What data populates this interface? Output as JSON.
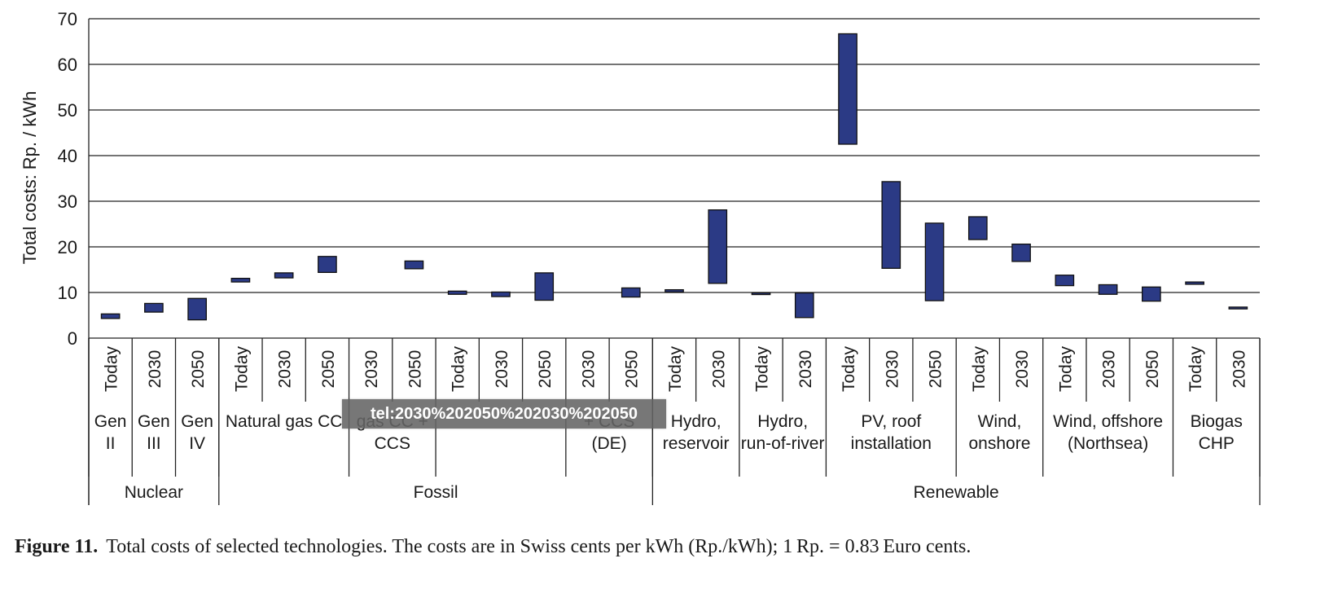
{
  "chart_data": {
    "type": "bar",
    "subtype": "floating-range",
    "ylabel": "Total costs: Rp. / kWh",
    "ylim": [
      0,
      70
    ],
    "yticks": [
      0,
      10,
      20,
      30,
      40,
      50,
      60,
      70
    ],
    "grid": true,
    "bar_color": "#2b3a85",
    "categories": [
      "Today",
      "2030",
      "2050",
      "Today",
      "2030",
      "2050",
      "2030",
      "2050",
      "Today",
      "2030",
      "2050",
      "2030",
      "2050",
      "Today",
      "2030",
      "Today",
      "2030",
      "Today",
      "2030",
      "2050",
      "Today",
      "2030",
      "Today",
      "2030",
      "2050",
      "Today",
      "2030"
    ],
    "ranges": [
      [
        4.3,
        5.3
      ],
      [
        5.7,
        7.6
      ],
      [
        4.0,
        8.7
      ],
      [
        12.3,
        13.1
      ],
      [
        13.2,
        14.3
      ],
      [
        14.4,
        17.9
      ],
      null,
      [
        15.2,
        16.9
      ],
      [
        9.6,
        10.3
      ],
      [
        9.1,
        10.1
      ],
      [
        8.3,
        14.3
      ],
      null,
      [
        9.0,
        11.0
      ],
      [
        10.1,
        10.6
      ],
      [
        12.0,
        28.1
      ],
      [
        9.6,
        9.9
      ],
      [
        4.5,
        9.9
      ],
      [
        42.5,
        66.7
      ],
      [
        15.3,
        34.3
      ],
      [
        8.2,
        25.2
      ],
      [
        21.6,
        26.6
      ],
      [
        16.8,
        20.6
      ],
      [
        11.5,
        13.8
      ],
      [
        9.6,
        11.7
      ],
      [
        8.1,
        11.2
      ],
      [
        11.8,
        12.3
      ],
      [
        6.4,
        6.8
      ]
    ],
    "technologies": [
      {
        "label": "Gen II",
        "start": 0,
        "span": 1
      },
      {
        "label": "Gen III",
        "start": 1,
        "span": 1
      },
      {
        "label": "Gen IV",
        "start": 2,
        "span": 1
      },
      {
        "label": "Natural gas CC",
        "start": 3,
        "span": 3
      },
      {
        "label": "gas CC + CCS",
        "start": 6,
        "span": 2
      },
      {
        "label": "",
        "start": 8,
        "span": 3
      },
      {
        "label": "+ CCS (DE)",
        "start": 11,
        "span": 2
      },
      {
        "label": "Hydro, reservoir",
        "start": 13,
        "span": 2
      },
      {
        "label": "Hydro, run-of-river",
        "start": 15,
        "span": 2
      },
      {
        "label": "PV, roof installation",
        "start": 17,
        "span": 3
      },
      {
        "label": "Wind, onshore",
        "start": 20,
        "span": 2
      },
      {
        "label": "Wind, offshore (Northsea)",
        "start": 22,
        "span": 3
      },
      {
        "label": "Biogas CHP",
        "start": 25,
        "span": 2
      }
    ],
    "groups": [
      {
        "label": "Nuclear",
        "start": 0,
        "span": 3
      },
      {
        "label": "Fossil",
        "start": 3,
        "span": 10
      },
      {
        "label": "Renewable",
        "start": 13,
        "span": 14
      }
    ]
  },
  "tooltip": "tel:2030%202050%202030%202050",
  "caption": {
    "label": "Figure 11.",
    "text": "Total costs of selected technologies. The costs are in Swiss cents per kWh (Rp./kWh); 1 Rp. = 0.83 Euro cents."
  }
}
